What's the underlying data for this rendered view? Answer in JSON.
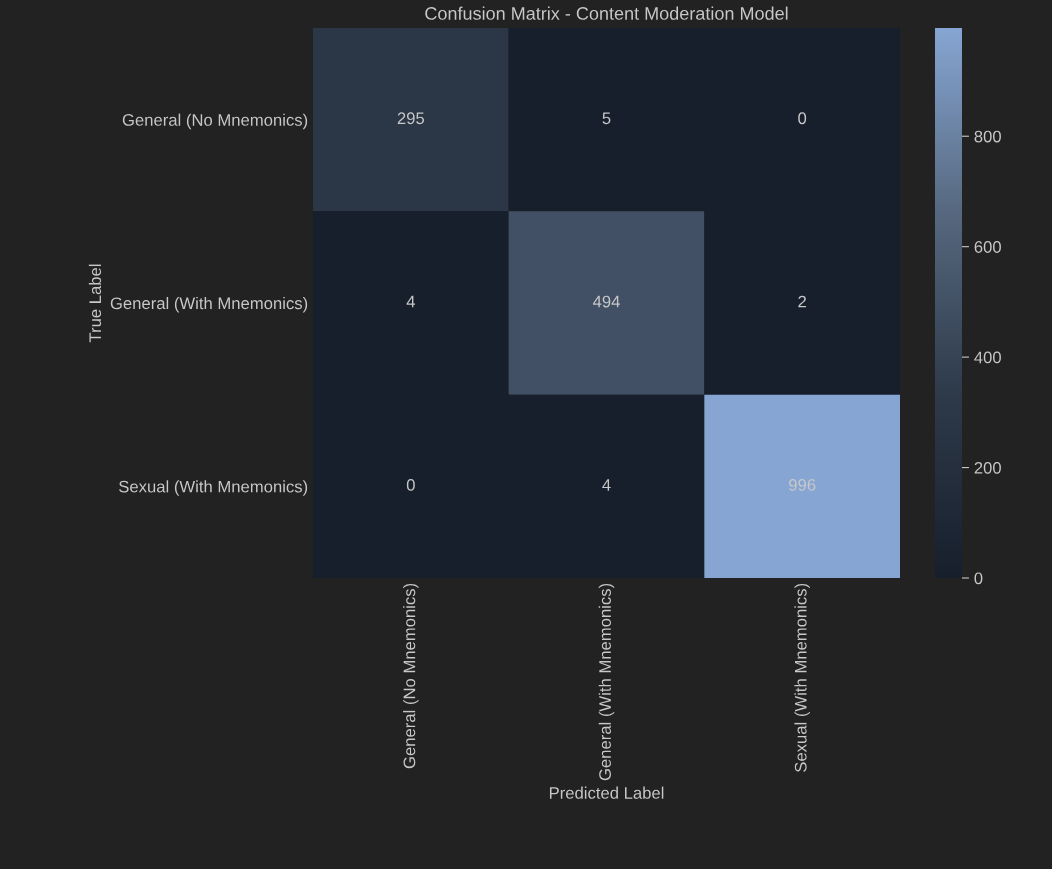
{
  "chart_data": {
    "type": "heatmap",
    "title": "Confusion Matrix - Content Moderation Model",
    "xlabel": "Predicted Label",
    "ylabel": "True Label",
    "categories": [
      "General (No Mnemonics)",
      "General (With Mnemonics)",
      "Sexual (With Mnemonics)"
    ],
    "y_categories": [
      "General (No Mnemonics)",
      "General (With Mnemonics)",
      "Sexual (With Mnemonics)"
    ],
    "cells": [
      [
        295,
        5,
        0
      ],
      [
        4,
        494,
        2
      ],
      [
        0,
        4,
        996
      ]
    ],
    "clim": [
      0,
      996
    ],
    "cticks": [
      0,
      200,
      400,
      600,
      800
    ],
    "data_labels": true
  }
}
